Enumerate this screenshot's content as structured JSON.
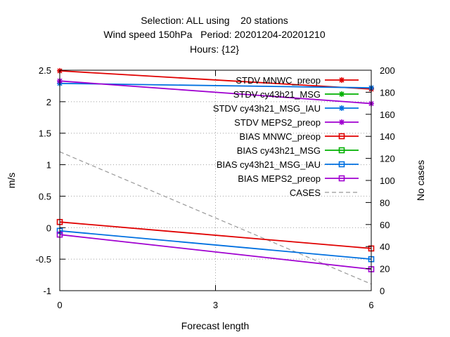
{
  "chart_data": {
    "type": "line",
    "title_lines": [
      "Selection: ALL using    20 stations",
      "Wind speed 150hPa   Period: 20201204-20201210",
      "Hours: {12}"
    ],
    "xlabel": "Forecast length",
    "ylabel": "m/s",
    "y2label": "No cases",
    "x_ticks": [
      0,
      3,
      6
    ],
    "xlim": [
      0,
      6
    ],
    "y_ticks": [
      -1,
      -0.5,
      0,
      0.5,
      1,
      1.5,
      2,
      2.5
    ],
    "ylim": [
      -1,
      2.5
    ],
    "y2_ticks": [
      0,
      20,
      40,
      60,
      80,
      100,
      120,
      140,
      160,
      180,
      200
    ],
    "y2lim": [
      0,
      200
    ],
    "grid": true,
    "legend_position": "top-right",
    "series": [
      {
        "name": "STDV MNWC_preop",
        "x": [
          0,
          6
        ],
        "values": [
          2.49,
          2.2
        ],
        "color": "#e00000",
        "marker": "star",
        "dash": "solid",
        "axis": "y1"
      },
      {
        "name": "STDV cy43h21_MSG",
        "x": [],
        "values": [],
        "color": "#00b000",
        "marker": "star",
        "dash": "solid",
        "axis": "y1"
      },
      {
        "name": "STDV cy43h21_MSG_IAU",
        "x": [
          0,
          6
        ],
        "values": [
          2.29,
          2.22
        ],
        "color": "#0070e0",
        "marker": "star",
        "dash": "solid",
        "axis": "y1"
      },
      {
        "name": "STDV MEPS2_preop",
        "x": [
          0,
          6
        ],
        "values": [
          2.33,
          1.97
        ],
        "color": "#a000d0",
        "marker": "star",
        "dash": "solid",
        "axis": "y1"
      },
      {
        "name": "BIAS MNWC_preop",
        "x": [
          0,
          6
        ],
        "values": [
          0.09,
          -0.33
        ],
        "color": "#e00000",
        "marker": "square",
        "dash": "solid",
        "axis": "y1"
      },
      {
        "name": "BIAS cy43h21_MSG",
        "x": [],
        "values": [],
        "color": "#00b000",
        "marker": "square",
        "dash": "solid",
        "axis": "y1"
      },
      {
        "name": "BIAS cy43h21_MSG_IAU",
        "x": [
          0,
          6
        ],
        "values": [
          -0.05,
          -0.5
        ],
        "color": "#0070e0",
        "marker": "square",
        "dash": "solid",
        "axis": "y1"
      },
      {
        "name": "BIAS MEPS2_preop",
        "x": [
          0,
          6
        ],
        "values": [
          -0.11,
          -0.66
        ],
        "color": "#a000d0",
        "marker": "square",
        "dash": "solid",
        "axis": "y1"
      },
      {
        "name": "CASES",
        "x": [
          0,
          6
        ],
        "values": [
          126,
          6
        ],
        "color": "#999999",
        "marker": "none",
        "dash": "dashed",
        "axis": "y2"
      }
    ]
  }
}
